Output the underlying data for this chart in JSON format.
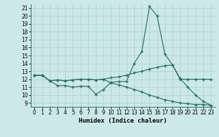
{
  "xlabel": "Humidex (Indice chaleur)",
  "bg_color": "#cce8e8",
  "line_color": "#2a6e62",
  "grid_color": "#aacfcf",
  "xlim": [
    -0.5,
    23.5
  ],
  "ylim": [
    8.5,
    21.5
  ],
  "yticks": [
    9,
    10,
    11,
    12,
    13,
    14,
    15,
    16,
    17,
    18,
    19,
    20,
    21
  ],
  "xticks": [
    0,
    1,
    2,
    3,
    4,
    5,
    6,
    7,
    8,
    9,
    10,
    11,
    12,
    13,
    14,
    15,
    16,
    17,
    18,
    19,
    20,
    21,
    22,
    23
  ],
  "series": [
    {
      "x": [
        0,
        1,
        2,
        3,
        4,
        5,
        6,
        7,
        8,
        9,
        10,
        11,
        12,
        13,
        14,
        15,
        16,
        17,
        18,
        19,
        20,
        21,
        22,
        23
      ],
      "y": [
        12.5,
        12.5,
        11.8,
        11.2,
        11.2,
        11.0,
        11.1,
        11.1,
        10.1,
        10.7,
        11.6,
        11.7,
        11.7,
        14.0,
        15.5,
        21.2,
        20.0,
        15.2,
        13.8,
        12.1,
        11.0,
        10.0,
        9.2,
        8.7
      ]
    },
    {
      "x": [
        0,
        1,
        2,
        3,
        4,
        5,
        6,
        7,
        8,
        9,
        10,
        11,
        12,
        13,
        14,
        15,
        16,
        17,
        18,
        19,
        20,
        21,
        22,
        23
      ],
      "y": [
        12.5,
        12.5,
        11.8,
        11.9,
        11.8,
        11.9,
        12.0,
        12.0,
        11.9,
        12.0,
        12.2,
        12.3,
        12.5,
        12.8,
        13.0,
        13.3,
        13.5,
        13.7,
        13.8,
        12.0,
        12.0,
        12.0,
        12.0,
        12.0
      ]
    },
    {
      "x": [
        0,
        1,
        2,
        3,
        4,
        5,
        6,
        7,
        8,
        9,
        10,
        11,
        12,
        13,
        14,
        15,
        16,
        17,
        18,
        19,
        20,
        21,
        22,
        23
      ],
      "y": [
        12.5,
        12.5,
        11.8,
        11.9,
        11.8,
        11.9,
        12.0,
        12.0,
        11.9,
        12.0,
        11.5,
        11.3,
        11.0,
        10.7,
        10.4,
        10.0,
        9.7,
        9.4,
        9.2,
        9.0,
        8.9,
        8.8,
        8.8,
        8.7
      ]
    }
  ]
}
